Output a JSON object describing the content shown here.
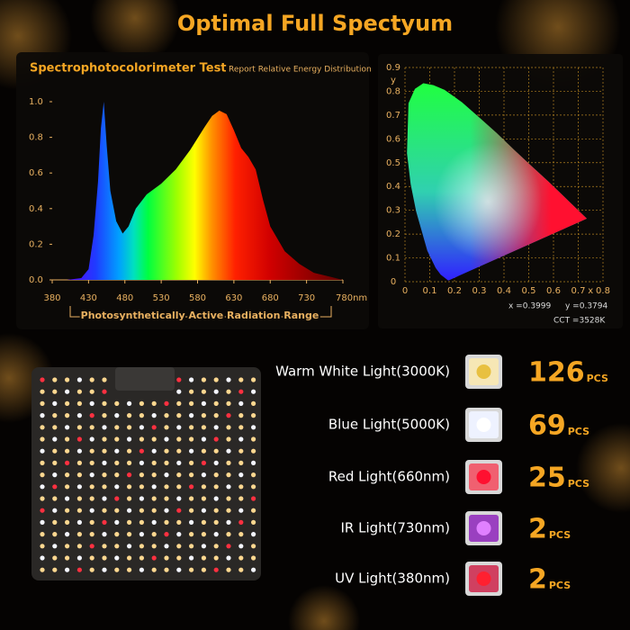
{
  "title": "Optimal Full Spectyum",
  "spectrum_chart": {
    "type": "area",
    "title": "Spectrophotocolorimeter Test",
    "subtitle": "Report Relative Energy Distribution",
    "x_range_label": "Photosynthetically Active Radiation Range",
    "x": [
      400,
      420,
      430,
      437,
      443,
      447,
      451,
      455,
      460,
      468,
      477,
      485,
      495,
      510,
      530,
      550,
      570,
      590,
      600,
      610,
      620,
      630,
      640,
      650,
      660,
      670,
      680,
      700,
      720,
      740,
      760,
      780
    ],
    "values": [
      0,
      0.01,
      0.06,
      0.25,
      0.55,
      0.85,
      1.0,
      0.75,
      0.5,
      0.33,
      0.26,
      0.3,
      0.4,
      0.48,
      0.54,
      0.62,
      0.73,
      0.86,
      0.92,
      0.95,
      0.93,
      0.84,
      0.74,
      0.69,
      0.62,
      0.45,
      0.3,
      0.16,
      0.09,
      0.04,
      0.02,
      0
    ],
    "xlim": [
      380,
      780
    ],
    "ylim": [
      0,
      1
    ],
    "xticks": [
      380,
      430,
      480,
      530,
      580,
      630,
      680,
      730,
      {
        "value": 780,
        "label": "780nm"
      }
    ],
    "yticks": [
      {
        "value": 0,
        "label": "0.0"
      },
      {
        "value": 0.2,
        "label": "0.2"
      },
      {
        "value": 0.4,
        "label": "0.4"
      },
      {
        "value": 0.6,
        "label": "0.6"
      },
      {
        "value": 0.8,
        "label": "0.8"
      },
      {
        "value": 1,
        "label": "1.0"
      }
    ]
  },
  "chromaticity_chart": {
    "type": "chromaticity",
    "xlabel": "x",
    "ylabel": "y",
    "xlim": [
      0,
      0.8
    ],
    "ylim": [
      0,
      0.9
    ],
    "xticks": [
      0,
      0.1,
      0.2,
      0.3,
      0.4,
      0.5,
      0.6,
      0.7,
      0.8
    ],
    "yticks": [
      0,
      0.1,
      0.2,
      0.3,
      0.4,
      0.5,
      0.6,
      0.7,
      0.8,
      0.9
    ],
    "annotations": [
      "x =0.3999",
      "y =0.3794",
      "CCT =3528K"
    ]
  },
  "leds": [
    {
      "name": "Warm White Light(3000K)",
      "count": 126,
      "unit": "PCS"
    },
    {
      "name": "Blue Light(5000K)",
      "count": 69,
      "unit": "PCS"
    },
    {
      "name": "Red Light(660nm)",
      "count": 25,
      "unit": "PCS"
    },
    {
      "name": "IR Light(730nm)",
      "count": 2,
      "unit": "PCS"
    },
    {
      "name": "UV Light(380nm)",
      "count": 2,
      "unit": "PCS"
    }
  ]
}
